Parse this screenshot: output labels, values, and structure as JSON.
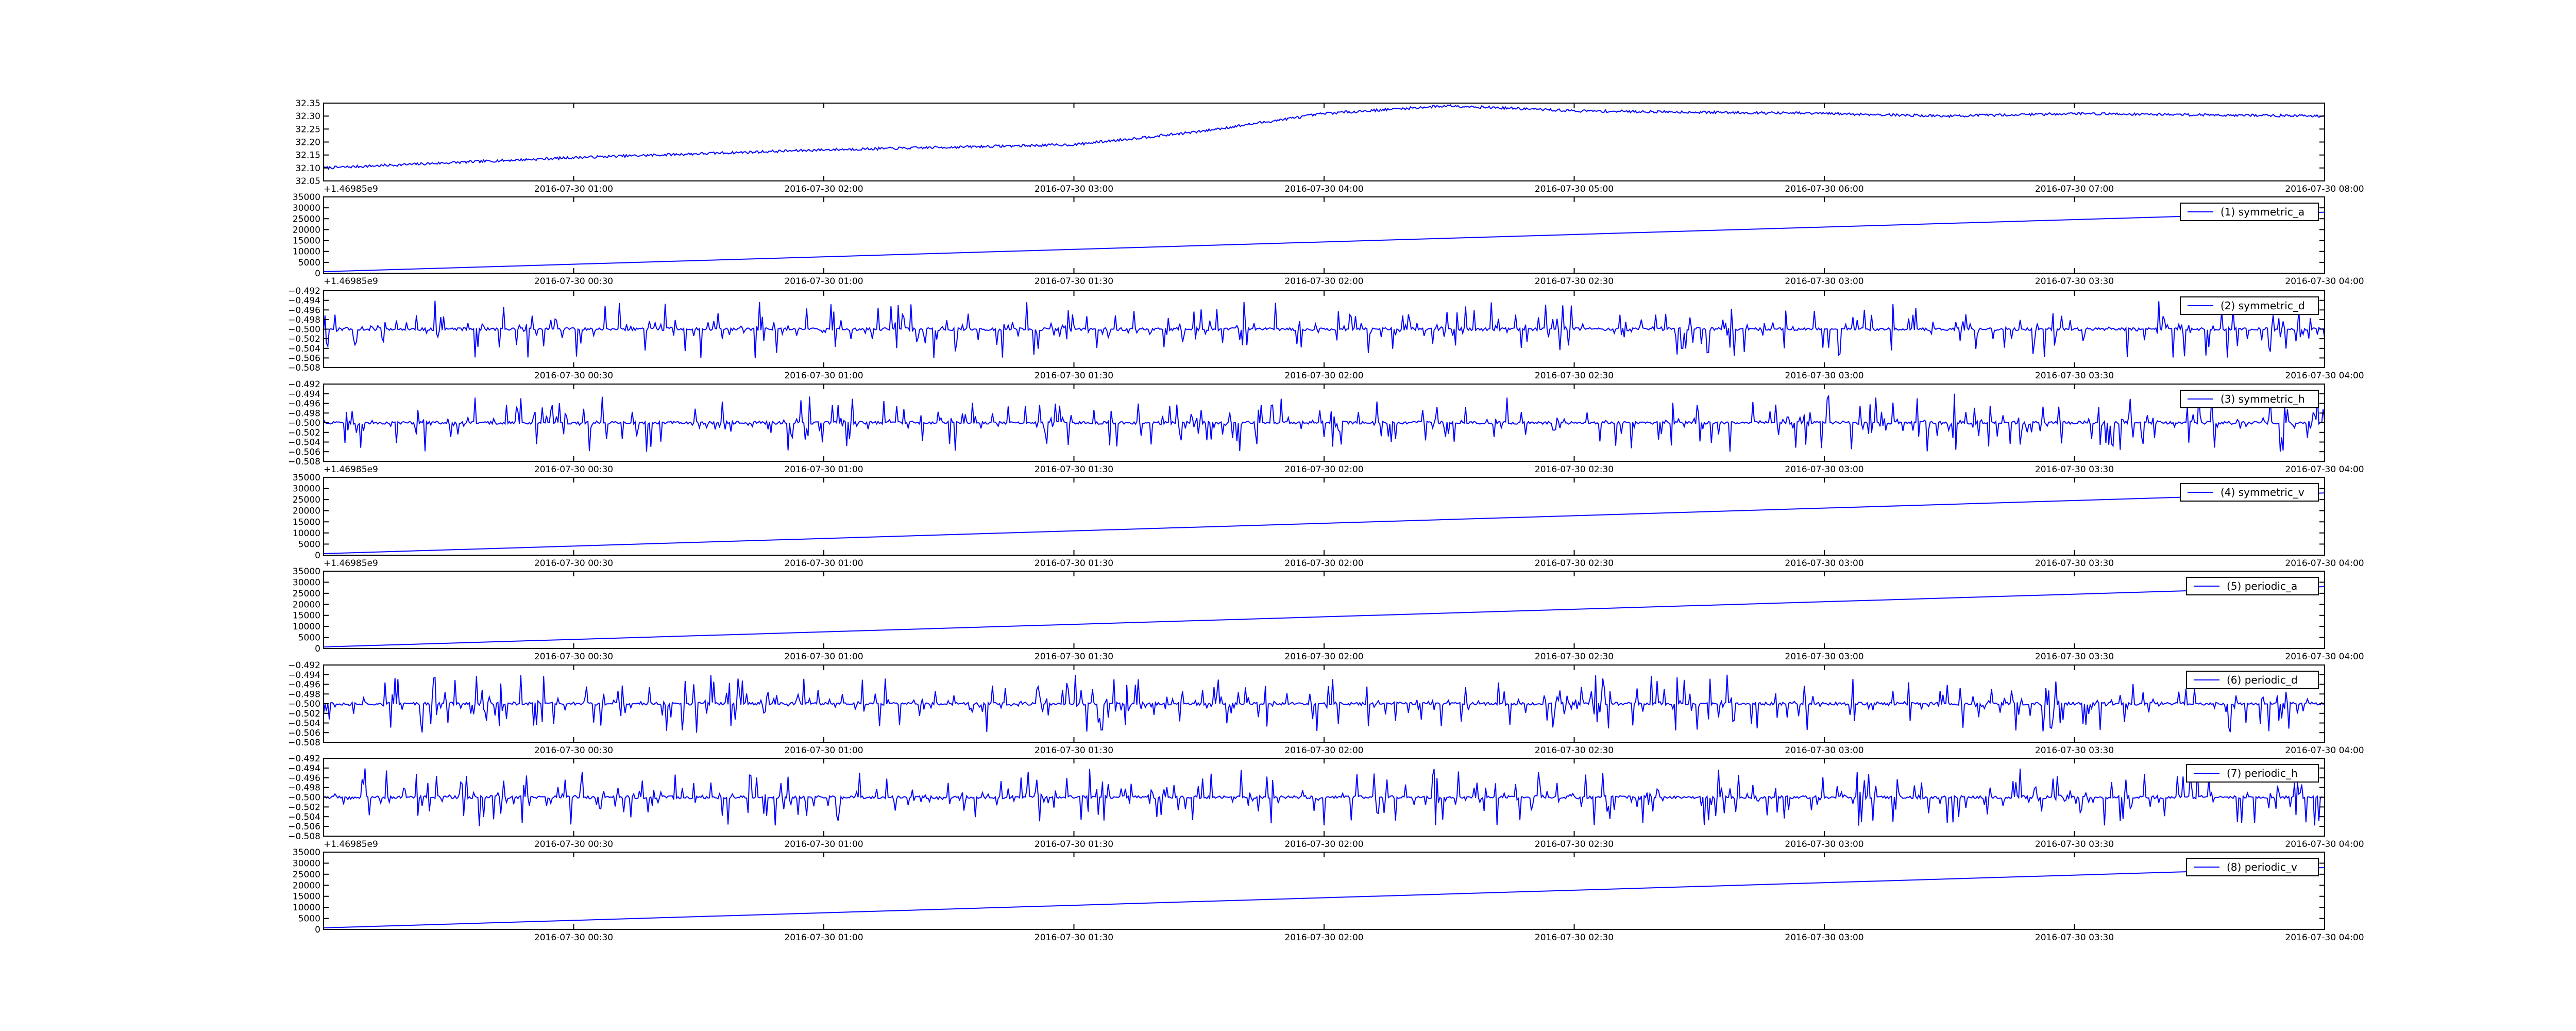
{
  "chart_data": [
    {
      "type": "line",
      "series": [
        {
          "values_description_none": true,
          "color": "#0000ff"
        }
      ],
      "x": [
        "2016-07-30 00:00",
        "2016-07-30 08:00"
      ],
      "xticks": [
        "2016-07-30 01:00",
        "2016-07-30 02:00",
        "2016-07-30 03:00",
        "2016-07-30 04:00",
        "2016-07-30 05:00",
        "2016-07-30 06:00",
        "2016-07-30 07:00",
        "2016-07-30 08:00"
      ],
      "yticks": [
        "32.35",
        "32.30",
        "32.25",
        "32.20",
        "32.15",
        "32.10",
        "32.05"
      ],
      "ylim": [
        32.05,
        32.35
      ],
      "trend": {
        "x_hours": [
          0,
          1,
          2,
          3,
          3.5,
          4,
          4.5,
          5,
          6,
          6.5,
          7,
          8
        ],
        "y": [
          32.1,
          32.14,
          32.17,
          32.19,
          32.24,
          32.31,
          32.34,
          32.32,
          32.31,
          32.3,
          32.31,
          32.3
        ]
      },
      "noise": 0.005,
      "offset_label": "+1.46985e9"
    },
    {
      "type": "line",
      "legend": "(1) symmetric_a",
      "legend_position": "top-right",
      "xticks": [
        "2016-07-30 00:30",
        "2016-07-30 01:00",
        "2016-07-30 01:30",
        "2016-07-30 02:00",
        "2016-07-30 02:30",
        "2016-07-30 03:00",
        "2016-07-30 03:30",
        "2016-07-30 04:00"
      ],
      "yticks": [
        "35000",
        "30000",
        "25000",
        "20000",
        "15000",
        "10000",
        "5000",
        "0"
      ],
      "ylim": [
        0,
        35000
      ],
      "x_hours": [
        0,
        4
      ],
      "y": [
        700,
        28000
      ],
      "offset_label": "+1.46985e9"
    },
    {
      "type": "line",
      "legend": "(2) symmetric_d",
      "legend_position": "top-right",
      "xticks": [
        "2016-07-30 00:30",
        "2016-07-30 01:00",
        "2016-07-30 01:30",
        "2016-07-30 02:00",
        "2016-07-30 02:30",
        "2016-07-30 03:00",
        "2016-07-30 03:30",
        "2016-07-30 04:00"
      ],
      "yticks": [
        "−0.492",
        "−0.494",
        "−0.496",
        "−0.498",
        "−0.500",
        "−0.502",
        "−0.504",
        "−0.506",
        "−0.508"
      ],
      "ylim": [
        -0.508,
        -0.492
      ],
      "baseline": -0.5,
      "amplitude": 0.006,
      "offset_label": "",
      "seed": 11
    },
    {
      "type": "line",
      "legend": "(3) symmetric_h",
      "legend_position": "top-right",
      "xticks": [
        "2016-07-30 00:30",
        "2016-07-30 01:00",
        "2016-07-30 01:30",
        "2016-07-30 02:00",
        "2016-07-30 02:30",
        "2016-07-30 03:00",
        "2016-07-30 03:30",
        "2016-07-30 04:00"
      ],
      "yticks": [
        "−0.492",
        "−0.494",
        "−0.496",
        "−0.498",
        "−0.500",
        "−0.502",
        "−0.504",
        "−0.506",
        "−0.508"
      ],
      "ylim": [
        -0.508,
        -0.492
      ],
      "baseline": -0.5,
      "amplitude": 0.006,
      "offset_label": "+1.46985e9",
      "seed": 23
    },
    {
      "type": "line",
      "legend": "(4) symmetric_v",
      "legend_position": "top-right",
      "xticks": [
        "2016-07-30 00:30",
        "2016-07-30 01:00",
        "2016-07-30 01:30",
        "2016-07-30 02:00",
        "2016-07-30 02:30",
        "2016-07-30 03:00",
        "2016-07-30 03:30",
        "2016-07-30 04:00"
      ],
      "yticks": [
        "35000",
        "30000",
        "25000",
        "20000",
        "15000",
        "10000",
        "5000",
        "0"
      ],
      "ylim": [
        0,
        35000
      ],
      "x_hours": [
        0,
        4
      ],
      "y": [
        700,
        28000
      ],
      "offset_label": "+1.46985e9"
    },
    {
      "type": "line",
      "legend": "(5) periodic_a",
      "legend_position": "top-right",
      "xticks": [
        "2016-07-30 00:30",
        "2016-07-30 01:00",
        "2016-07-30 01:30",
        "2016-07-30 02:00",
        "2016-07-30 02:30",
        "2016-07-30 03:00",
        "2016-07-30 03:30",
        "2016-07-30 04:00"
      ],
      "yticks": [
        "35000",
        "30000",
        "25000",
        "20000",
        "15000",
        "10000",
        "5000",
        "0"
      ],
      "ylim": [
        0,
        35000
      ],
      "x_hours": [
        0,
        4
      ],
      "y": [
        700,
        28000
      ],
      "offset_label": ""
    },
    {
      "type": "line",
      "legend": "(6) periodic_d",
      "legend_position": "top-right",
      "xticks": [
        "2016-07-30 00:30",
        "2016-07-30 01:00",
        "2016-07-30 01:30",
        "2016-07-30 02:00",
        "2016-07-30 02:30",
        "2016-07-30 03:00",
        "2016-07-30 03:30",
        "2016-07-30 04:00"
      ],
      "yticks": [
        "−0.492",
        "−0.494",
        "−0.496",
        "−0.498",
        "−0.500",
        "−0.502",
        "−0.504",
        "−0.506",
        "−0.508"
      ],
      "ylim": [
        -0.508,
        -0.492
      ],
      "baseline": -0.5,
      "amplitude": 0.006,
      "offset_label": "",
      "seed": 37
    },
    {
      "type": "line",
      "legend": "(7) periodic_h",
      "legend_position": "top-right",
      "xticks": [
        "2016-07-30 00:30",
        "2016-07-30 01:00",
        "2016-07-30 01:30",
        "2016-07-30 02:00",
        "2016-07-30 02:30",
        "2016-07-30 03:00",
        "2016-07-30 03:30",
        "2016-07-30 04:00"
      ],
      "yticks": [
        "−0.492",
        "−0.494",
        "−0.496",
        "−0.498",
        "−0.500",
        "−0.502",
        "−0.504",
        "−0.506",
        "−0.508"
      ],
      "ylim": [
        -0.508,
        -0.492
      ],
      "baseline": -0.5,
      "amplitude": 0.006,
      "offset_label": "+1.46985e9",
      "seed": 53
    },
    {
      "type": "line",
      "legend": "(8) periodic_v",
      "legend_position": "top-right",
      "xticks": [
        "2016-07-30 00:30",
        "2016-07-30 01:00",
        "2016-07-30 01:30",
        "2016-07-30 02:00",
        "2016-07-30 02:30",
        "2016-07-30 03:00",
        "2016-07-30 03:30",
        "2016-07-30 04:00"
      ],
      "yticks": [
        "35000",
        "30000",
        "25000",
        "20000",
        "15000",
        "10000",
        "5000",
        "0"
      ],
      "ylim": [
        0,
        35000
      ],
      "x_hours": [
        0,
        4
      ],
      "y": [
        700,
        28000
      ],
      "offset_label": ""
    }
  ],
  "colors": {
    "line": "#0000ff",
    "axes": "#000000",
    "background": "#ffffff"
  }
}
